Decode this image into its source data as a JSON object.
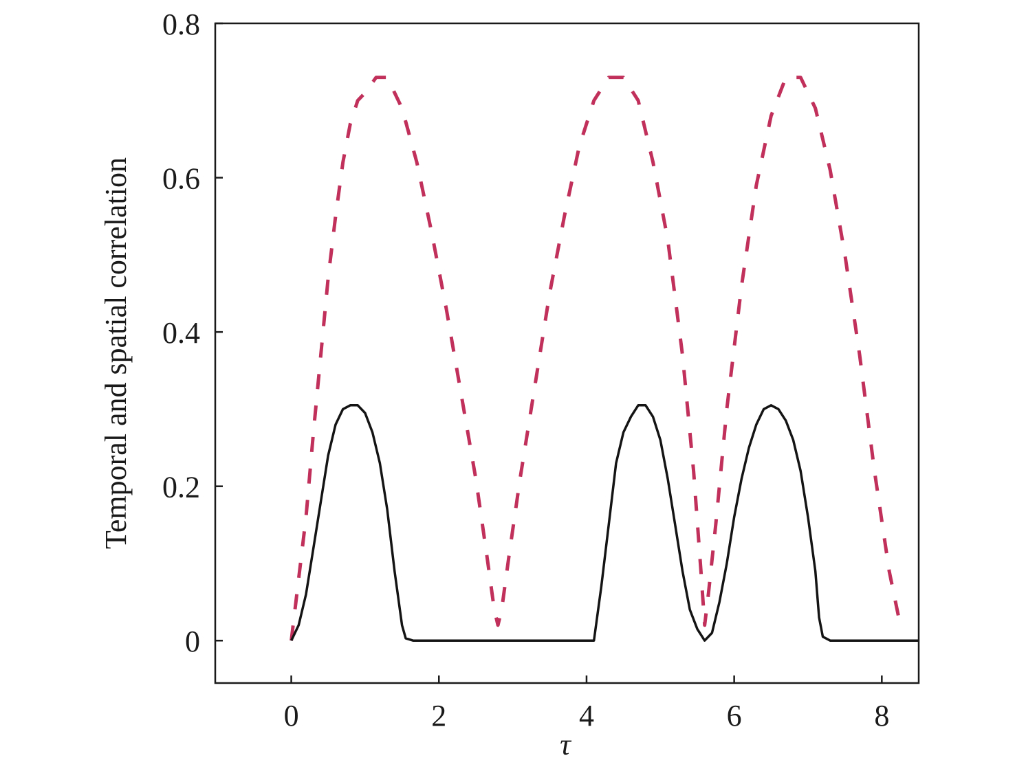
{
  "chart_data": {
    "type": "line",
    "title": "",
    "xlabel": "τ",
    "ylabel": "Temporal and spatial correlation",
    "xlim": [
      -1.03,
      8.5
    ],
    "ylim": [
      -0.055,
      0.8
    ],
    "xticks": [
      0,
      2,
      4,
      6,
      8
    ],
    "xtick_labels": [
      "0",
      "2",
      "4",
      "6",
      "8"
    ],
    "yticks": [
      0,
      0.2,
      0.4,
      0.6,
      0.8
    ],
    "ytick_labels": [
      "0",
      "0.2",
      "0.4",
      "0.6",
      "0.8"
    ],
    "grid": false,
    "legend": "none",
    "series": [
      {
        "style": "dashed",
        "color": "#c0305a",
        "points": [
          [
            0.0,
            0.0
          ],
          [
            0.1,
            0.08
          ],
          [
            0.2,
            0.16
          ],
          [
            0.3,
            0.27
          ],
          [
            0.4,
            0.37
          ],
          [
            0.5,
            0.47
          ],
          [
            0.6,
            0.55
          ],
          [
            0.7,
            0.62
          ],
          [
            0.8,
            0.67
          ],
          [
            0.9,
            0.7
          ],
          [
            1.0,
            0.71
          ],
          [
            1.15,
            0.73
          ],
          [
            1.3,
            0.73
          ],
          [
            1.5,
            0.69
          ],
          [
            1.7,
            0.62
          ],
          [
            1.9,
            0.53
          ],
          [
            2.1,
            0.43
          ],
          [
            2.3,
            0.32
          ],
          [
            2.5,
            0.21
          ],
          [
            2.65,
            0.11
          ],
          [
            2.75,
            0.04
          ],
          [
            2.8,
            0.02
          ],
          [
            2.85,
            0.04
          ],
          [
            2.95,
            0.11
          ],
          [
            3.1,
            0.21
          ],
          [
            3.3,
            0.33
          ],
          [
            3.5,
            0.45
          ],
          [
            3.7,
            0.55
          ],
          [
            3.9,
            0.64
          ],
          [
            4.1,
            0.7
          ],
          [
            4.3,
            0.73
          ],
          [
            4.5,
            0.73
          ],
          [
            4.7,
            0.7
          ],
          [
            4.9,
            0.62
          ],
          [
            5.1,
            0.52
          ],
          [
            5.3,
            0.37
          ],
          [
            5.45,
            0.22
          ],
          [
            5.55,
            0.09
          ],
          [
            5.6,
            0.02
          ],
          [
            5.65,
            0.06
          ],
          [
            5.75,
            0.15
          ],
          [
            5.9,
            0.3
          ],
          [
            6.1,
            0.46
          ],
          [
            6.3,
            0.59
          ],
          [
            6.5,
            0.68
          ],
          [
            6.7,
            0.73
          ],
          [
            6.9,
            0.73
          ],
          [
            7.1,
            0.69
          ],
          [
            7.3,
            0.61
          ],
          [
            7.5,
            0.5
          ],
          [
            7.7,
            0.37
          ],
          [
            7.9,
            0.22
          ],
          [
            8.1,
            0.09
          ],
          [
            8.25,
            0.02
          ]
        ]
      },
      {
        "style": "solid",
        "color": "#141414",
        "points": [
          [
            0.0,
            0.0
          ],
          [
            0.1,
            0.02
          ],
          [
            0.2,
            0.06
          ],
          [
            0.3,
            0.12
          ],
          [
            0.4,
            0.18
          ],
          [
            0.5,
            0.24
          ],
          [
            0.6,
            0.28
          ],
          [
            0.7,
            0.3
          ],
          [
            0.8,
            0.305
          ],
          [
            0.9,
            0.305
          ],
          [
            1.0,
            0.295
          ],
          [
            1.1,
            0.27
          ],
          [
            1.2,
            0.23
          ],
          [
            1.3,
            0.17
          ],
          [
            1.4,
            0.09
          ],
          [
            1.5,
            0.02
          ],
          [
            1.55,
            0.003
          ],
          [
            1.65,
            0.0
          ],
          [
            4.1,
            0.0
          ],
          [
            4.2,
            0.07
          ],
          [
            4.3,
            0.15
          ],
          [
            4.4,
            0.23
          ],
          [
            4.5,
            0.27
          ],
          [
            4.6,
            0.29
          ],
          [
            4.7,
            0.305
          ],
          [
            4.8,
            0.305
          ],
          [
            4.9,
            0.29
          ],
          [
            5.0,
            0.26
          ],
          [
            5.1,
            0.21
          ],
          [
            5.2,
            0.15
          ],
          [
            5.3,
            0.09
          ],
          [
            5.4,
            0.04
          ],
          [
            5.5,
            0.015
          ],
          [
            5.6,
            0.0
          ],
          [
            5.7,
            0.01
          ],
          [
            5.8,
            0.05
          ],
          [
            5.9,
            0.1
          ],
          [
            6.0,
            0.16
          ],
          [
            6.1,
            0.21
          ],
          [
            6.2,
            0.25
          ],
          [
            6.3,
            0.28
          ],
          [
            6.4,
            0.3
          ],
          [
            6.5,
            0.305
          ],
          [
            6.6,
            0.3
          ],
          [
            6.7,
            0.285
          ],
          [
            6.8,
            0.26
          ],
          [
            6.9,
            0.22
          ],
          [
            7.0,
            0.16
          ],
          [
            7.1,
            0.09
          ],
          [
            7.15,
            0.03
          ],
          [
            7.2,
            0.005
          ],
          [
            7.3,
            0.0
          ],
          [
            8.5,
            0.0
          ]
        ]
      }
    ]
  }
}
